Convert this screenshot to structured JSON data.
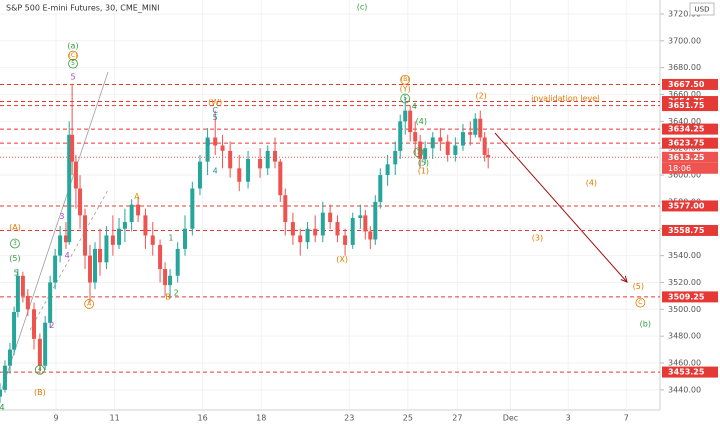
{
  "chart_data": {
    "type": "candlestick",
    "title": "S&P 500 E-mini Futures, 30, CME_MINI",
    "currency": "USD",
    "up_color": "#26a69a",
    "down_color": "#ef5350",
    "level_color": "#e53935",
    "xlim": [
      -1.91,
      20.6
    ],
    "ylim": [
      3425,
      3730.4
    ],
    "xticks": [
      {
        "value": 0,
        "label": "9"
      },
      {
        "value": 2,
        "label": "11"
      },
      {
        "value": 5,
        "label": "16"
      },
      {
        "value": 7,
        "label": "18"
      },
      {
        "value": 10,
        "label": "23"
      },
      {
        "value": 12,
        "label": "25"
      },
      {
        "value": 13.69,
        "label": "27"
      },
      {
        "value": 15.5,
        "label": "Dec"
      },
      {
        "value": 17.47,
        "label": "3"
      },
      {
        "value": 19.45,
        "label": "7"
      }
    ],
    "yticks": [
      {
        "value": 3440,
        "label": "3440.00"
      },
      {
        "value": 3460,
        "label": "3460.00"
      },
      {
        "value": 3480,
        "label": "3480.00"
      },
      {
        "value": 3500,
        "label": "3500.00"
      },
      {
        "value": 3520,
        "label": "3520.00"
      },
      {
        "value": 3540,
        "label": "3540.00"
      },
      {
        "value": 3560,
        "label": "3560.00"
      },
      {
        "value": 3580,
        "label": "3580.00"
      },
      {
        "value": 3600,
        "label": "3600.00"
      },
      {
        "value": 3620,
        "label": "3620.00"
      },
      {
        "value": 3640,
        "label": "3640.00"
      },
      {
        "value": 3660,
        "label": "3660.00"
      },
      {
        "value": 3680,
        "label": "3680.00"
      },
      {
        "value": 3700,
        "label": "3700.00"
      },
      {
        "value": 3720,
        "label": "3720.00"
      }
    ],
    "levels": [
      {
        "value": 3667.5,
        "label": "3667.50"
      },
      {
        "value": 3654.75,
        "label": "3654.75"
      },
      {
        "value": 3651.75,
        "label": "3651.75"
      },
      {
        "value": 3634.25,
        "label": "3634.25"
      },
      {
        "value": 3623.75,
        "label": "3623.75"
      },
      {
        "value": 3577,
        "label": "3577.00"
      },
      {
        "value": 3558.75,
        "label": "3558.75"
      },
      {
        "value": 3509.25,
        "label": "3509.25"
      },
      {
        "value": 3453.25,
        "label": "3453.25"
      }
    ],
    "last_price": {
      "value": 3613.25,
      "label": "3613.25",
      "countdown": "18:06"
    },
    "x": [
      -1.91,
      -1.74,
      -1.57,
      -1.43,
      -1.3,
      -1.13,
      -0.96,
      -0.75,
      -0.55,
      -0.37,
      -0.2,
      -0.03,
      0.14,
      0.34,
      0.45,
      0.55,
      0.68,
      0.82,
      0.99,
      1.16,
      1.33,
      1.5,
      1.72,
      1.94,
      2.15,
      2.35,
      2.58,
      2.8,
      3.05,
      3.3,
      3.55,
      3.72,
      3.89,
      4.15,
      4.4,
      4.65,
      4.91,
      5.17,
      5.43,
      5.68,
      5.94,
      6.25,
      6.55,
      6.96,
      7.22,
      7.47,
      7.65,
      7.82,
      8.08,
      8.33,
      8.58,
      8.84,
      9.1,
      9.35,
      9.6,
      9.86,
      10.12,
      10.38,
      10.55,
      10.72,
      10.89,
      11.06,
      11.31,
      11.57,
      11.74,
      11.91,
      12.08,
      12.25,
      12.42,
      12.59,
      12.85,
      13.11,
      13.36,
      13.62,
      13.88,
      14.13,
      14.3,
      14.47,
      14.62,
      14.74
    ],
    "open": [
      3435,
      3440,
      3458,
      3470,
      3498,
      3525,
      3510,
      3500,
      3478,
      3458,
      3490,
      3520,
      3540,
      3555,
      3550,
      3630,
      3610,
      3590,
      3570,
      3540,
      3520,
      3545,
      3535,
      3555,
      3548,
      3560,
      3565,
      3578,
      3570,
      3555,
      3548,
      3530,
      3518,
      3525,
      3545,
      3560,
      3590,
      3610,
      3628,
      3622,
      3618,
      3605,
      3595,
      3612,
      3605,
      3618,
      3610,
      3585,
      3565,
      3555,
      3550,
      3560,
      3555,
      3572,
      3565,
      3555,
      3548,
      3568,
      3570,
      3558,
      3552,
      3580,
      3600,
      3608,
      3618,
      3640,
      3648,
      3632,
      3625,
      3612,
      3620,
      3628,
      3625,
      3615,
      3622,
      3632,
      3630,
      3642,
      3628,
      3615
    ],
    "high": [
      3445,
      3462,
      3475,
      3502,
      3530,
      3528,
      3515,
      3505,
      3482,
      3495,
      3525,
      3545,
      3562,
      3565,
      3640,
      3668,
      3615,
      3600,
      3575,
      3548,
      3550,
      3560,
      3562,
      3570,
      3568,
      3575,
      3582,
      3584,
      3575,
      3565,
      3552,
      3535,
      3530,
      3550,
      3570,
      3595,
      3615,
      3635,
      3648,
      3630,
      3625,
      3615,
      3618,
      3620,
      3622,
      3628,
      3612,
      3590,
      3572,
      3560,
      3565,
      3570,
      3580,
      3578,
      3570,
      3560,
      3572,
      3578,
      3574,
      3562,
      3585,
      3605,
      3615,
      3625,
      3645,
      3658,
      3652,
      3640,
      3630,
      3625,
      3632,
      3635,
      3630,
      3628,
      3638,
      3640,
      3646,
      3648,
      3632,
      3620
    ],
    "low": [
      3430,
      3438,
      3452,
      3466,
      3494,
      3505,
      3495,
      3470,
      3452,
      3455,
      3486,
      3515,
      3535,
      3545,
      3548,
      3600,
      3575,
      3560,
      3530,
      3505,
      3515,
      3525,
      3530,
      3540,
      3545,
      3550,
      3558,
      3565,
      3545,
      3540,
      3520,
      3510,
      3508,
      3520,
      3540,
      3555,
      3585,
      3600,
      3615,
      3605,
      3598,
      3588,
      3590,
      3598,
      3600,
      3605,
      3580,
      3555,
      3548,
      3540,
      3545,
      3550,
      3550,
      3560,
      3550,
      3540,
      3545,
      3560,
      3552,
      3545,
      3548,
      3575,
      3592,
      3600,
      3612,
      3630,
      3625,
      3615,
      3605,
      3608,
      3612,
      3618,
      3610,
      3610,
      3618,
      3622,
      3628,
      3625,
      3610,
      3605
    ],
    "close": [
      3440,
      3458,
      3470,
      3498,
      3525,
      3510,
      3500,
      3478,
      3458,
      3490,
      3520,
      3540,
      3555,
      3550,
      3630,
      3610,
      3590,
      3570,
      3540,
      3520,
      3545,
      3535,
      3555,
      3548,
      3560,
      3565,
      3578,
      3570,
      3555,
      3548,
      3530,
      3518,
      3525,
      3545,
      3560,
      3590,
      3610,
      3628,
      3622,
      3618,
      3605,
      3595,
      3612,
      3605,
      3618,
      3610,
      3585,
      3565,
      3555,
      3550,
      3560,
      3555,
      3572,
      3565,
      3555,
      3548,
      3568,
      3570,
      3558,
      3552,
      3580,
      3600,
      3608,
      3618,
      3640,
      3648,
      3632,
      3625,
      3612,
      3620,
      3628,
      3625,
      3615,
      3622,
      3632,
      3630,
      3642,
      3628,
      3615,
      3613.25
    ],
    "annotations": [
      {
        "text": "(c)",
        "x": 10.44,
        "y": 3725,
        "color": "#2e9e3a"
      },
      {
        "text": "(a)",
        "x": 0.58,
        "y": 3696,
        "color": "#2e9e3a"
      },
      {
        "text": "(C)",
        "x": 0.58,
        "y": 3689,
        "color": "#e07b00",
        "circled": true
      },
      {
        "text": "5",
        "x": 0.58,
        "y": 3683,
        "color": "#2e9e3a",
        "circled": true
      },
      {
        "text": "5",
        "x": 0.58,
        "y": 3673,
        "color": "#b03fc8"
      },
      {
        "text": "(W)",
        "x": 5.43,
        "y": 3654,
        "color": "#e07b00"
      },
      {
        "text": "C",
        "x": 5.43,
        "y": 3648,
        "color": "#1c8fb0"
      },
      {
        "text": "5",
        "x": 5.43,
        "y": 3643,
        "color": "#1c8fb0"
      },
      {
        "text": "3",
        "x": 5.19,
        "y": 3624,
        "color": "#1c8fb0"
      },
      {
        "text": "4",
        "x": 5.43,
        "y": 3603,
        "color": "#1c8fb0"
      },
      {
        "text": "(B)",
        "x": 11.91,
        "y": 3671,
        "color": "#e07b00",
        "circled": true
      },
      {
        "text": "(Y)",
        "x": 11.91,
        "y": 3664,
        "color": "#e07b00"
      },
      {
        "text": "5",
        "x": 11.91,
        "y": 3657,
        "color": "#2e9e3a",
        "circled": true
      },
      {
        "text": "4",
        "x": 12.22,
        "y": 3651,
        "color": "#2e9e3a"
      },
      {
        "text": "(4)",
        "x": 12.46,
        "y": 3640,
        "color": "#2e9e3a"
      },
      {
        "text": "3",
        "x": 12.36,
        "y": 3617,
        "color": "#2e9e3a",
        "circled": true
      },
      {
        "text": "(5)",
        "x": 12.53,
        "y": 3609,
        "color": "#2e9e3a"
      },
      {
        "text": "(1)",
        "x": 12.53,
        "y": 3603,
        "color": "#e07b00"
      },
      {
        "text": "(2)",
        "x": 14.5,
        "y": 3659,
        "color": "#e07b00"
      },
      {
        "text": "invalidation level",
        "x": 17.37,
        "y": 3657,
        "color": "#e07b00"
      },
      {
        "text": "(4)",
        "x": 18.26,
        "y": 3594,
        "color": "#e07b00"
      },
      {
        "text": "(3)",
        "x": 16.42,
        "y": 3553,
        "color": "#e07b00"
      },
      {
        "text": "(5)",
        "x": 19.86,
        "y": 3517,
        "color": "#e07b00"
      },
      {
        "text": "C",
        "x": 19.93,
        "y": 3505,
        "color": "#e07b00",
        "circled": true
      },
      {
        "text": "(b)",
        "x": 20.1,
        "y": 3489,
        "color": "#2e9e3a"
      },
      {
        "text": "A",
        "x": 2.76,
        "y": 3584,
        "color": "#d4a000"
      },
      {
        "text": "B",
        "x": 3.82,
        "y": 3509,
        "color": "#e07b00"
      },
      {
        "text": "2",
        "x": 4.1,
        "y": 3512,
        "color": "#2e9e3a"
      },
      {
        "text": "1",
        "x": 3.92,
        "y": 3553,
        "color": "#2e9e3a"
      },
      {
        "text": "(X)",
        "x": 9.76,
        "y": 3537,
        "color": "#e07b00"
      },
      {
        "text": "A",
        "x": 1.13,
        "y": 3504,
        "color": "#e07b00",
        "circled": true
      },
      {
        "text": "(A)",
        "x": -1.4,
        "y": 3561,
        "color": "#e07b00"
      },
      {
        "text": "3",
        "x": -1.4,
        "y": 3549,
        "color": "#2e9e3a",
        "circled": true
      },
      {
        "text": "(5)",
        "x": -1.4,
        "y": 3538,
        "color": "#2e9e3a"
      },
      {
        "text": "5",
        "x": -1.36,
        "y": 3527,
        "color": "#2e9e3a"
      },
      {
        "text": "3",
        "x": 0.2,
        "y": 3569,
        "color": "#b03fc8"
      },
      {
        "text": "4",
        "x": 0.38,
        "y": 3540,
        "color": "#b03fc8"
      },
      {
        "text": "2",
        "x": -0.14,
        "y": 3488,
        "color": "#b03fc8"
      },
      {
        "text": "4",
        "x": -0.55,
        "y": 3455,
        "color": "#2e9e3a",
        "circled": true
      },
      {
        "text": "(B)",
        "x": -0.55,
        "y": 3438,
        "color": "#e07b00"
      },
      {
        "text": "4",
        "x": -1.84,
        "y": 3427,
        "color": "#2e9e3a"
      }
    ]
  }
}
